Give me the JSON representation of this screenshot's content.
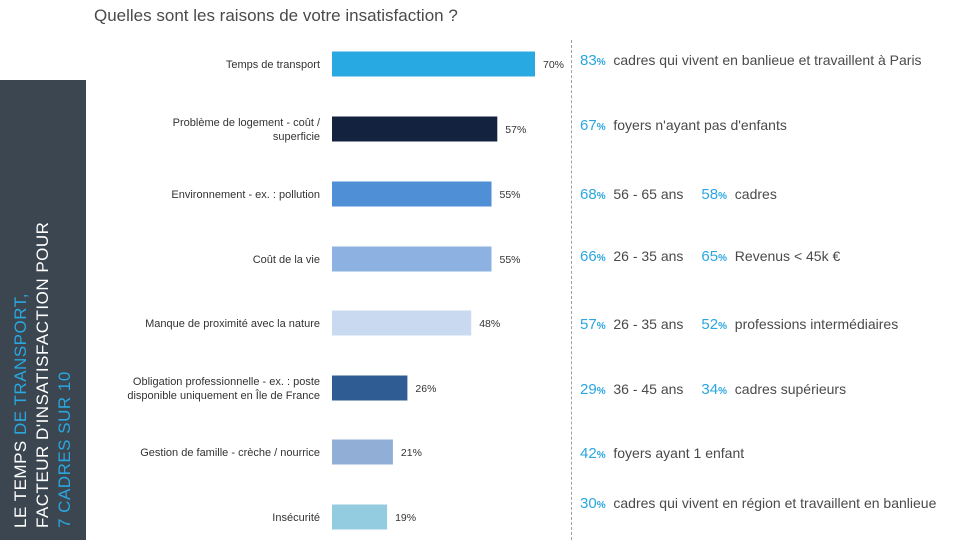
{
  "title": "Quelles sont les raisons de votre insatisfaction ?",
  "banner": {
    "line1a": "LE TEMPS",
    "line1b": "DE TRANSPORT,",
    "line2": "FACTEUR D'INSATISFACTION POUR",
    "line3": "7 CADRES SUR 10"
  },
  "colors": {
    "banner_bg": "#3b4650",
    "highlight": "#2aa7e0",
    "bars": [
      "#29a9e1",
      "#13223f",
      "#4f8fd6",
      "#8db2e2",
      "#c9d9f0",
      "#2f5c93",
      "#90aed6",
      "#93cbe0"
    ]
  },
  "chart_data": {
    "type": "bar",
    "orientation": "horizontal",
    "categories": [
      "Temps de transport",
      "Problème de logement - coût / superficie",
      "Environnement - ex. : pollution",
      "Coût de la vie",
      "Manque de proximité avec la nature",
      "Obligation professionnelle - ex. : poste disponible uniquement en Île de France",
      "Gestion de famille - crèche / nourrice",
      "Insécurité"
    ],
    "category_lines": [
      [
        "Temps de transport"
      ],
      [
        "Problème de logement - coût /",
        "superficie"
      ],
      [
        "Environnement - ex. : pollution"
      ],
      [
        "Coût de la vie"
      ],
      [
        "Manque de proximité avec la nature"
      ],
      [
        "Obligation professionnelle - ex. : poste",
        "disponible uniquement en Île de France"
      ],
      [
        "Gestion de famille - crèche / nourrice"
      ],
      [
        "Insécurité"
      ]
    ],
    "values": [
      70,
      57,
      55,
      55,
      48,
      26,
      21,
      19
    ],
    "value_labels": [
      "70%",
      "57%",
      "55%",
      "55%",
      "48%",
      "26%",
      "21%",
      "19%"
    ],
    "unit": "%",
    "xlim": [
      0,
      100
    ],
    "grid": false,
    "legend": "none"
  },
  "stats": [
    [
      {
        "pct": "83",
        "sign": "%",
        "text": "cadres qui vivent en banlieue et travaillent à Paris"
      }
    ],
    [
      {
        "pct": "67",
        "sign": "%",
        "text": "foyers n'ayant pas d'enfants"
      }
    ],
    [
      {
        "pct": "68",
        "sign": "%",
        "text": "56 - 65 ans"
      },
      {
        "pct": "58",
        "sign": "%",
        "text": "cadres"
      }
    ],
    [
      {
        "pct": "66",
        "sign": "%",
        "text": "26 - 35 ans"
      },
      {
        "pct": "65",
        "sign": "%",
        "text": "Revenus < 45k €"
      }
    ],
    [
      {
        "pct": "57",
        "sign": "%",
        "text": "26 - 35 ans"
      },
      {
        "pct": "52",
        "sign": "%",
        "text": "professions intermédiaires"
      }
    ],
    [
      {
        "pct": "29",
        "sign": "%",
        "text": "36 - 45 ans"
      },
      {
        "pct": "34",
        "sign": "%",
        "text": "cadres supérieurs"
      }
    ],
    [
      {
        "pct": "42",
        "sign": "%",
        "text": "foyers ayant 1 enfant"
      }
    ],
    [
      {
        "pct": "30",
        "sign": "%",
        "text": "cadres qui vivent en région et travaillent en banlieue"
      }
    ]
  ]
}
